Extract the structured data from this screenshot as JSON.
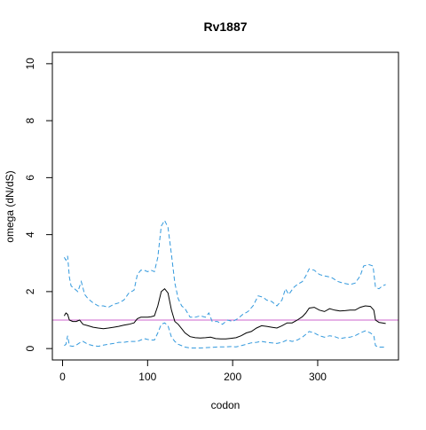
{
  "chart_data": {
    "type": "line",
    "title": "Rv1887",
    "xlabel": "codon",
    "ylabel": "omega (dN/dS)",
    "xlim": [
      -12,
      395
    ],
    "ylim": [
      -0.4,
      10.4
    ],
    "xticks": [
      0,
      100,
      200,
      300
    ],
    "yticks": [
      0,
      2,
      4,
      6,
      8,
      10
    ],
    "reference_line": {
      "y": 1,
      "color": "#cc66cc"
    },
    "colors": {
      "estimate": "#000000",
      "bounds": "#3399dd"
    },
    "series": [
      {
        "key": "upper",
        "style": "dashed",
        "points": [
          [
            2,
            3.2
          ],
          [
            4,
            3.1
          ],
          [
            6,
            3.25
          ],
          [
            8,
            2.5
          ],
          [
            10,
            2.2
          ],
          [
            14,
            2.1
          ],
          [
            18,
            2.0
          ],
          [
            22,
            2.35
          ],
          [
            26,
            1.9
          ],
          [
            30,
            1.75
          ],
          [
            36,
            1.6
          ],
          [
            42,
            1.5
          ],
          [
            48,
            1.5
          ],
          [
            54,
            1.45
          ],
          [
            60,
            1.55
          ],
          [
            66,
            1.6
          ],
          [
            72,
            1.7
          ],
          [
            78,
            1.95
          ],
          [
            84,
            2.05
          ],
          [
            88,
            2.6
          ],
          [
            92,
            2.75
          ],
          [
            96,
            2.75
          ],
          [
            100,
            2.7
          ],
          [
            104,
            2.75
          ],
          [
            108,
            2.7
          ],
          [
            112,
            3.2
          ],
          [
            116,
            4.3
          ],
          [
            120,
            4.5
          ],
          [
            124,
            4.25
          ],
          [
            128,
            3.3
          ],
          [
            132,
            2.3
          ],
          [
            136,
            1.75
          ],
          [
            140,
            1.5
          ],
          [
            144,
            1.4
          ],
          [
            150,
            1.1
          ],
          [
            156,
            1.1
          ],
          [
            162,
            1.15
          ],
          [
            168,
            1.1
          ],
          [
            172,
            1.25
          ],
          [
            176,
            0.95
          ],
          [
            182,
            0.95
          ],
          [
            188,
            0.85
          ],
          [
            194,
            1.0
          ],
          [
            200,
            0.95
          ],
          [
            206,
            1.05
          ],
          [
            212,
            1.2
          ],
          [
            218,
            1.3
          ],
          [
            224,
            1.5
          ],
          [
            230,
            1.85
          ],
          [
            236,
            1.8
          ],
          [
            240,
            1.7
          ],
          [
            246,
            1.65
          ],
          [
            252,
            1.5
          ],
          [
            258,
            1.7
          ],
          [
            262,
            2.1
          ],
          [
            266,
            1.9
          ],
          [
            272,
            2.15
          ],
          [
            276,
            2.25
          ],
          [
            282,
            2.35
          ],
          [
            286,
            2.55
          ],
          [
            290,
            2.8
          ],
          [
            296,
            2.75
          ],
          [
            302,
            2.6
          ],
          [
            308,
            2.55
          ],
          [
            316,
            2.5
          ],
          [
            324,
            2.35
          ],
          [
            330,
            2.3
          ],
          [
            338,
            2.25
          ],
          [
            344,
            2.3
          ],
          [
            350,
            2.55
          ],
          [
            354,
            2.9
          ],
          [
            360,
            2.95
          ],
          [
            365,
            2.9
          ],
          [
            368,
            2.15
          ],
          [
            372,
            2.1
          ],
          [
            376,
            2.2
          ],
          [
            380,
            2.25
          ]
        ]
      },
      {
        "key": "estimate",
        "style": "solid",
        "points": [
          [
            2,
            1.15
          ],
          [
            4,
            1.25
          ],
          [
            6,
            1.2
          ],
          [
            8,
            1.0
          ],
          [
            12,
            0.95
          ],
          [
            16,
            0.95
          ],
          [
            20,
            1.0
          ],
          [
            24,
            0.85
          ],
          [
            30,
            0.8
          ],
          [
            36,
            0.75
          ],
          [
            42,
            0.72
          ],
          [
            48,
            0.7
          ],
          [
            54,
            0.72
          ],
          [
            60,
            0.75
          ],
          [
            66,
            0.78
          ],
          [
            72,
            0.82
          ],
          [
            78,
            0.85
          ],
          [
            84,
            0.9
          ],
          [
            88,
            1.05
          ],
          [
            92,
            1.1
          ],
          [
            96,
            1.1
          ],
          [
            100,
            1.1
          ],
          [
            104,
            1.12
          ],
          [
            108,
            1.15
          ],
          [
            112,
            1.5
          ],
          [
            116,
            2.0
          ],
          [
            120,
            2.1
          ],
          [
            124,
            1.95
          ],
          [
            128,
            1.35
          ],
          [
            132,
            0.95
          ],
          [
            136,
            0.85
          ],
          [
            140,
            0.7
          ],
          [
            144,
            0.55
          ],
          [
            150,
            0.42
          ],
          [
            156,
            0.38
          ],
          [
            162,
            0.37
          ],
          [
            168,
            0.38
          ],
          [
            174,
            0.4
          ],
          [
            180,
            0.35
          ],
          [
            186,
            0.34
          ],
          [
            192,
            0.34
          ],
          [
            198,
            0.36
          ],
          [
            204,
            0.38
          ],
          [
            210,
            0.45
          ],
          [
            216,
            0.55
          ],
          [
            222,
            0.6
          ],
          [
            228,
            0.72
          ],
          [
            234,
            0.8
          ],
          [
            240,
            0.78
          ],
          [
            246,
            0.75
          ],
          [
            252,
            0.72
          ],
          [
            258,
            0.8
          ],
          [
            264,
            0.9
          ],
          [
            270,
            0.9
          ],
          [
            276,
            1.0
          ],
          [
            282,
            1.12
          ],
          [
            286,
            1.25
          ],
          [
            290,
            1.42
          ],
          [
            296,
            1.45
          ],
          [
            302,
            1.35
          ],
          [
            308,
            1.3
          ],
          [
            314,
            1.4
          ],
          [
            320,
            1.35
          ],
          [
            326,
            1.32
          ],
          [
            332,
            1.33
          ],
          [
            338,
            1.35
          ],
          [
            344,
            1.35
          ],
          [
            350,
            1.45
          ],
          [
            356,
            1.5
          ],
          [
            362,
            1.48
          ],
          [
            366,
            1.35
          ],
          [
            368,
            1.0
          ],
          [
            372,
            0.92
          ],
          [
            376,
            0.9
          ],
          [
            380,
            0.88
          ]
        ]
      },
      {
        "key": "lower",
        "style": "dashed",
        "points": [
          [
            2,
            0.1
          ],
          [
            4,
            0.15
          ],
          [
            6,
            0.45
          ],
          [
            8,
            0.1
          ],
          [
            12,
            0.08
          ],
          [
            16,
            0.12
          ],
          [
            20,
            0.2
          ],
          [
            24,
            0.25
          ],
          [
            30,
            0.15
          ],
          [
            36,
            0.1
          ],
          [
            42,
            0.08
          ],
          [
            48,
            0.12
          ],
          [
            54,
            0.15
          ],
          [
            60,
            0.18
          ],
          [
            66,
            0.22
          ],
          [
            72,
            0.22
          ],
          [
            78,
            0.25
          ],
          [
            84,
            0.25
          ],
          [
            88,
            0.25
          ],
          [
            92,
            0.3
          ],
          [
            96,
            0.35
          ],
          [
            100,
            0.32
          ],
          [
            104,
            0.3
          ],
          [
            108,
            0.3
          ],
          [
            112,
            0.55
          ],
          [
            116,
            0.85
          ],
          [
            120,
            0.9
          ],
          [
            124,
            0.8
          ],
          [
            128,
            0.4
          ],
          [
            132,
            0.25
          ],
          [
            136,
            0.15
          ],
          [
            140,
            0.1
          ],
          [
            144,
            0.05
          ],
          [
            150,
            0.02
          ],
          [
            156,
            0.02
          ],
          [
            162,
            0.02
          ],
          [
            168,
            0.03
          ],
          [
            174,
            0.04
          ],
          [
            180,
            0.05
          ],
          [
            186,
            0.06
          ],
          [
            192,
            0.06
          ],
          [
            198,
            0.07
          ],
          [
            204,
            0.06
          ],
          [
            210,
            0.1
          ],
          [
            216,
            0.15
          ],
          [
            222,
            0.2
          ],
          [
            228,
            0.22
          ],
          [
            234,
            0.25
          ],
          [
            240,
            0.22
          ],
          [
            246,
            0.2
          ],
          [
            252,
            0.18
          ],
          [
            258,
            0.22
          ],
          [
            264,
            0.3
          ],
          [
            270,
            0.25
          ],
          [
            276,
            0.3
          ],
          [
            282,
            0.4
          ],
          [
            286,
            0.5
          ],
          [
            290,
            0.6
          ],
          [
            296,
            0.55
          ],
          [
            302,
            0.45
          ],
          [
            308,
            0.4
          ],
          [
            314,
            0.45
          ],
          [
            320,
            0.42
          ],
          [
            326,
            0.35
          ],
          [
            332,
            0.38
          ],
          [
            338,
            0.4
          ],
          [
            344,
            0.45
          ],
          [
            350,
            0.55
          ],
          [
            356,
            0.62
          ],
          [
            362,
            0.55
          ],
          [
            366,
            0.45
          ],
          [
            368,
            0.1
          ],
          [
            372,
            0.05
          ],
          [
            376,
            0.05
          ],
          [
            380,
            0.05
          ]
        ]
      }
    ]
  }
}
